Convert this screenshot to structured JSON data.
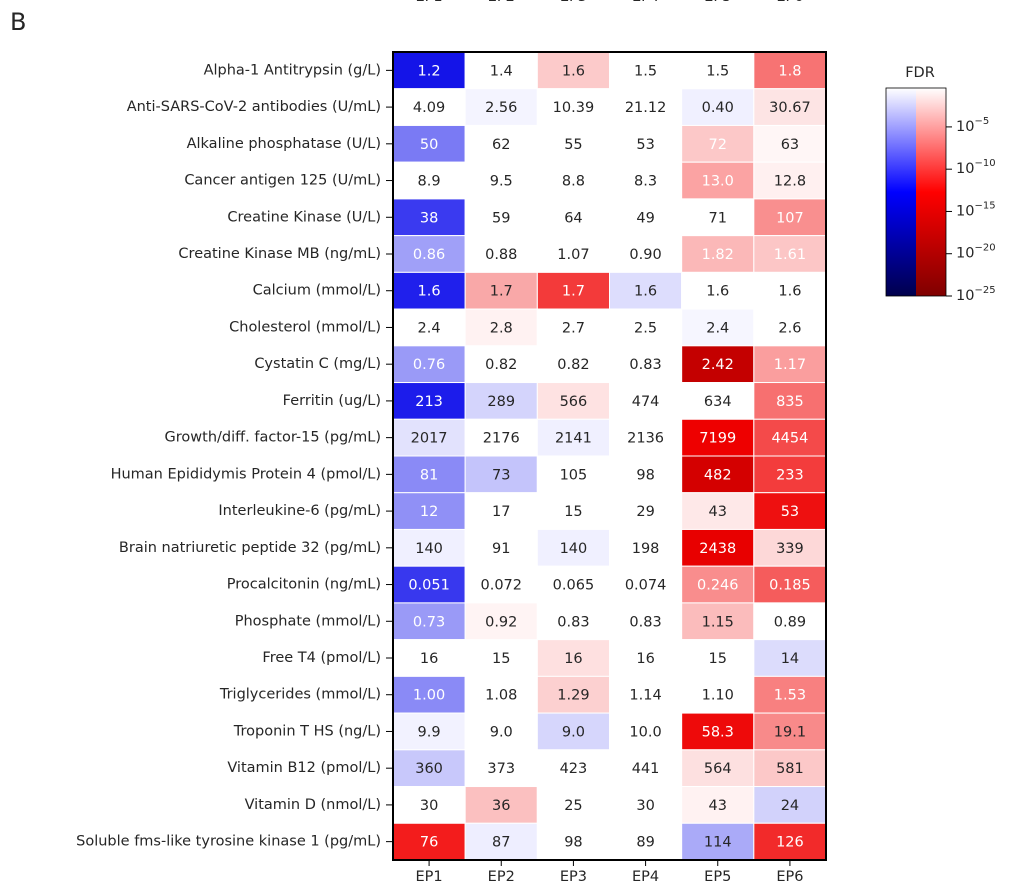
{
  "chart_data": {
    "type": "heatmap",
    "panel_label": "B",
    "columns": [
      "EP1",
      "EP2",
      "EP3",
      "EP4",
      "EP5",
      "EP6"
    ],
    "rows": [
      "Alpha-1 Antitrypsin (g/L)",
      "Anti-SARS-CoV-2 antibodies (U/mL)",
      "Alkaline phosphatase (U/L)",
      "Cancer antigen 125 (U/mL)",
      "Creatine Kinase (U/L)",
      "Creatine Kinase MB (ng/mL)",
      "Calcium (mmol/L)",
      "Cholesterol (mmol/L)",
      "Cystatin C (mg/L)",
      "Ferritin (ug/L)",
      "Growth/diff. factor-15 (pg/mL)",
      "Human Epididymis Protein 4 (pmol/L)",
      "Interleukine-6 (pg/mL)",
      "Brain natriuretic peptide 32 (pg/mL)",
      "Procalcitonin (ng/mL)",
      "Phosphate (mmol/L)",
      "Free T4 (pmol/L)",
      "Triglycerides (mmol/L)",
      "Troponin T HS (ng/L)",
      "Vitamin B12 (pmol/L)",
      "Vitamin D (nmol/L)",
      "Soluble fms-like tyrosine kinase 1 (pg/mL)"
    ],
    "values": [
      [
        1.2,
        1.4,
        1.6,
        1.5,
        1.5,
        1.8
      ],
      [
        4.09,
        2.56,
        10.39,
        21.12,
        0.4,
        30.67
      ],
      [
        50,
        62,
        55,
        53,
        72,
        63
      ],
      [
        8.9,
        9.5,
        8.8,
        8.3,
        13,
        12.8
      ],
      [
        38,
        59,
        64,
        49,
        71,
        107
      ],
      [
        0.86,
        0.88,
        1.07,
        0.9,
        1.82,
        1.61
      ],
      [
        1.6,
        1.7,
        1.7,
        1.6,
        1.6,
        1.6
      ],
      [
        2.4,
        2.8,
        2.7,
        2.5,
        2.4,
        2.6
      ],
      [
        0.76,
        0.82,
        0.82,
        0.83,
        2.42,
        1.17
      ],
      [
        213,
        289,
        566,
        474,
        634,
        835
      ],
      [
        2017,
        2176,
        2141,
        2136,
        7199,
        4454
      ],
      [
        81,
        73,
        105,
        98,
        482,
        233
      ],
      [
        12,
        17,
        15,
        29,
        43,
        53
      ],
      [
        140,
        91,
        140,
        198,
        2438,
        339
      ],
      [
        0.051,
        0.072,
        0.065,
        0.074,
        0.246,
        0.185
      ],
      [
        0.73,
        0.92,
        0.83,
        0.83,
        1.15,
        0.89
      ],
      [
        16,
        15,
        16,
        16,
        15,
        14
      ],
      [
        1,
        1.08,
        1.29,
        1.14,
        1.1,
        1.53
      ],
      [
        9.9,
        9,
        9,
        10,
        58.3,
        19.1
      ],
      [
        360,
        373,
        423,
        441,
        564,
        581
      ],
      [
        30,
        36,
        25,
        30,
        43,
        24
      ],
      [
        76,
        87,
        98,
        89,
        114,
        126
      ]
    ],
    "value_labels": [
      [
        "1.2",
        "1.4",
        "1.6",
        "1.5",
        "1.5",
        "1.8"
      ],
      [
        "4.09",
        "2.56",
        "10.39",
        "21.12",
        "0.40",
        "30.67"
      ],
      [
        "50",
        "62",
        "55",
        "53",
        "72",
        "63"
      ],
      [
        "8.9",
        "9.5",
        "8.8",
        "8.3",
        "13.0",
        "12.8"
      ],
      [
        "38",
        "59",
        "64",
        "49",
        "71",
        "107"
      ],
      [
        "0.86",
        "0.88",
        "1.07",
        "0.90",
        "1.82",
        "1.61"
      ],
      [
        "1.6",
        "1.7",
        "1.7",
        "1.6",
        "1.6",
        "1.6"
      ],
      [
        "2.4",
        "2.8",
        "2.7",
        "2.5",
        "2.4",
        "2.6"
      ],
      [
        "0.76",
        "0.82",
        "0.82",
        "0.83",
        "2.42",
        "1.17"
      ],
      [
        "213",
        "289",
        "566",
        "474",
        "634",
        "835"
      ],
      [
        "2017",
        "2176",
        "2141",
        "2136",
        "7199",
        "4454"
      ],
      [
        "81",
        "73",
        "105",
        "98",
        "482",
        "233"
      ],
      [
        "12",
        "17",
        "15",
        "29",
        "43",
        "53"
      ],
      [
        "140",
        "91",
        "140",
        "198",
        "2438",
        "339"
      ],
      [
        "0.051",
        "0.072",
        "0.065",
        "0.074",
        "0.246",
        "0.185"
      ],
      [
        "0.73",
        "0.92",
        "0.83",
        "0.83",
        "1.15",
        "0.89"
      ],
      [
        "16",
        "15",
        "16",
        "16",
        "15",
        "14"
      ],
      [
        "1.00",
        "1.08",
        "1.29",
        "1.14",
        "1.10",
        "1.53"
      ],
      [
        "9.9",
        "9.0",
        "9.0",
        "10.0",
        "58.3",
        "19.1"
      ],
      [
        "360",
        "373",
        "423",
        "441",
        "564",
        "581"
      ],
      [
        "30",
        "36",
        "25",
        "30",
        "43",
        "24"
      ],
      [
        "76",
        "87",
        "98",
        "89",
        "114",
        "126"
      ]
    ],
    "cell_colors": [
      [
        "#1414e8",
        "#ffffff",
        "#fccaca",
        "#ffffff",
        "#ffffff",
        "#f77373"
      ],
      [
        "#ffffff",
        "#f4f4ff",
        "#ffffff",
        "#ffffff",
        "#f0f0ff",
        "#fde4e4"
      ],
      [
        "#7a7af4",
        "#ffffff",
        "#ffffff",
        "#ffffff",
        "#fcc8c8",
        "#fff6f6"
      ],
      [
        "#ffffff",
        "#ffffff",
        "#ffffff",
        "#ffffff",
        "#fba3a3",
        "#fff0f0"
      ],
      [
        "#3a3af0",
        "#ffffff",
        "#ffffff",
        "#ffffff",
        "#ffffff",
        "#f98f8f"
      ],
      [
        "#a0a0f8",
        "#ffffff",
        "#ffffff",
        "#ffffff",
        "#fbb8b8",
        "#fcc6c6"
      ],
      [
        "#2020ec",
        "#f9a8a8",
        "#f33a3a",
        "#ddddfd",
        "#ffffff",
        "#ffffff"
      ],
      [
        "#ffffff",
        "#fff2f2",
        "#ffffff",
        "#ffffff",
        "#f6f6ff",
        "#ffffff"
      ],
      [
        "#9a9af7",
        "#ffffff",
        "#ffffff",
        "#ffffff",
        "#c40000",
        "#fa9e9e"
      ],
      [
        "#1c1ceb",
        "#d4d4fc",
        "#fee2e2",
        "#ffffff",
        "#ffffff",
        "#f77070"
      ],
      [
        "#e2e2fd",
        "#ffffff",
        "#f0f0ff",
        "#ffffff",
        "#ee0000",
        "#f44a4a"
      ],
      [
        "#8a8af6",
        "#c4c4fb",
        "#ffffff",
        "#ffffff",
        "#d40000",
        "#f33c3c"
      ],
      [
        "#9090f6",
        "#ffffff",
        "#ffffff",
        "#ffffff",
        "#fee8e8",
        "#ee1010"
      ],
      [
        "#f0f0ff",
        "#ffffff",
        "#f0f0ff",
        "#ffffff",
        "#e80000",
        "#fdd8d8"
      ],
      [
        "#3838ee",
        "#ffffff",
        "#ffffff",
        "#ffffff",
        "#f98d8d",
        "#f55c5c"
      ],
      [
        "#9a9af7",
        "#fff4f4",
        "#ffffff",
        "#ffffff",
        "#fbbcbc",
        "#ffffff"
      ],
      [
        "#ffffff",
        "#ffffff",
        "#fee0e0",
        "#ffffff",
        "#ffffff",
        "#dcdcfc"
      ],
      [
        "#8a8af6",
        "#ffffff",
        "#fcd0d0",
        "#ffffff",
        "#ffffff",
        "#f88080"
      ],
      [
        "#f2f2ff",
        "#ffffff",
        "#d6d6fc",
        "#ffffff",
        "#ee0a0a",
        "#f88a8a"
      ],
      [
        "#c8c8fb",
        "#ffffff",
        "#ffffff",
        "#ffffff",
        "#fde0e0",
        "#fcc8c8"
      ],
      [
        "#ffffff",
        "#fbc0c0",
        "#ffffff",
        "#ffffff",
        "#fff2f2",
        "#d2d2fb"
      ],
      [
        "#f31c1c",
        "#eeeeff",
        "#ffffff",
        "#ffffff",
        "#aaaaf8",
        "#f22a2a"
      ]
    ],
    "label_colors": [
      [
        "#ffffff",
        "#262626",
        "#262626",
        "#262626",
        "#262626",
        "#ffffff"
      ],
      [
        "#262626",
        "#262626",
        "#262626",
        "#262626",
        "#262626",
        "#262626"
      ],
      [
        "#ffffff",
        "#262626",
        "#262626",
        "#262626",
        "#ffffff",
        "#262626"
      ],
      [
        "#262626",
        "#262626",
        "#262626",
        "#262626",
        "#ffffff",
        "#262626"
      ],
      [
        "#ffffff",
        "#262626",
        "#262626",
        "#262626",
        "#262626",
        "#ffffff"
      ],
      [
        "#ffffff",
        "#262626",
        "#262626",
        "#262626",
        "#ffffff",
        "#ffffff"
      ],
      [
        "#ffffff",
        "#262626",
        "#ffffff",
        "#262626",
        "#262626",
        "#262626"
      ],
      [
        "#262626",
        "#262626",
        "#262626",
        "#262626",
        "#262626",
        "#262626"
      ],
      [
        "#ffffff",
        "#262626",
        "#262626",
        "#262626",
        "#ffffff",
        "#ffffff"
      ],
      [
        "#ffffff",
        "#262626",
        "#262626",
        "#262626",
        "#262626",
        "#ffffff"
      ],
      [
        "#262626",
        "#262626",
        "#262626",
        "#262626",
        "#ffffff",
        "#ffffff"
      ],
      [
        "#ffffff",
        "#262626",
        "#262626",
        "#262626",
        "#ffffff",
        "#ffffff"
      ],
      [
        "#ffffff",
        "#262626",
        "#262626",
        "#262626",
        "#262626",
        "#ffffff"
      ],
      [
        "#262626",
        "#262626",
        "#262626",
        "#262626",
        "#ffffff",
        "#262626"
      ],
      [
        "#ffffff",
        "#262626",
        "#262626",
        "#262626",
        "#ffffff",
        "#ffffff"
      ],
      [
        "#ffffff",
        "#262626",
        "#262626",
        "#262626",
        "#262626",
        "#262626"
      ],
      [
        "#262626",
        "#262626",
        "#262626",
        "#262626",
        "#262626",
        "#262626"
      ],
      [
        "#ffffff",
        "#262626",
        "#262626",
        "#262626",
        "#262626",
        "#ffffff"
      ],
      [
        "#262626",
        "#262626",
        "#262626",
        "#262626",
        "#ffffff",
        "#262626"
      ],
      [
        "#262626",
        "#262626",
        "#262626",
        "#262626",
        "#262626",
        "#262626"
      ],
      [
        "#262626",
        "#262626",
        "#262626",
        "#262626",
        "#262626",
        "#262626"
      ],
      [
        "#ffffff",
        "#262626",
        "#262626",
        "#262626",
        "#262626",
        "#ffffff"
      ]
    ],
    "colorbar": {
      "title": "FDR",
      "log_scale": true,
      "clim": [
        1e-25,
        0.4
      ],
      "ticks": [
        {
          "value": 1e-05,
          "label": "10−5"
        },
        {
          "value": 1e-10,
          "label": "10−10"
        },
        {
          "value": 1e-15,
          "label": "10−15"
        },
        {
          "value": 1e-20,
          "label": "10−20"
        },
        {
          "value": 1e-25,
          "label": "10−25"
        }
      ],
      "negative_colors": [
        "#ffffff",
        "#0000ff",
        "#00004c"
      ],
      "positive_colors": [
        "#ffffff",
        "#ff0000",
        "#7f0000"
      ]
    }
  }
}
